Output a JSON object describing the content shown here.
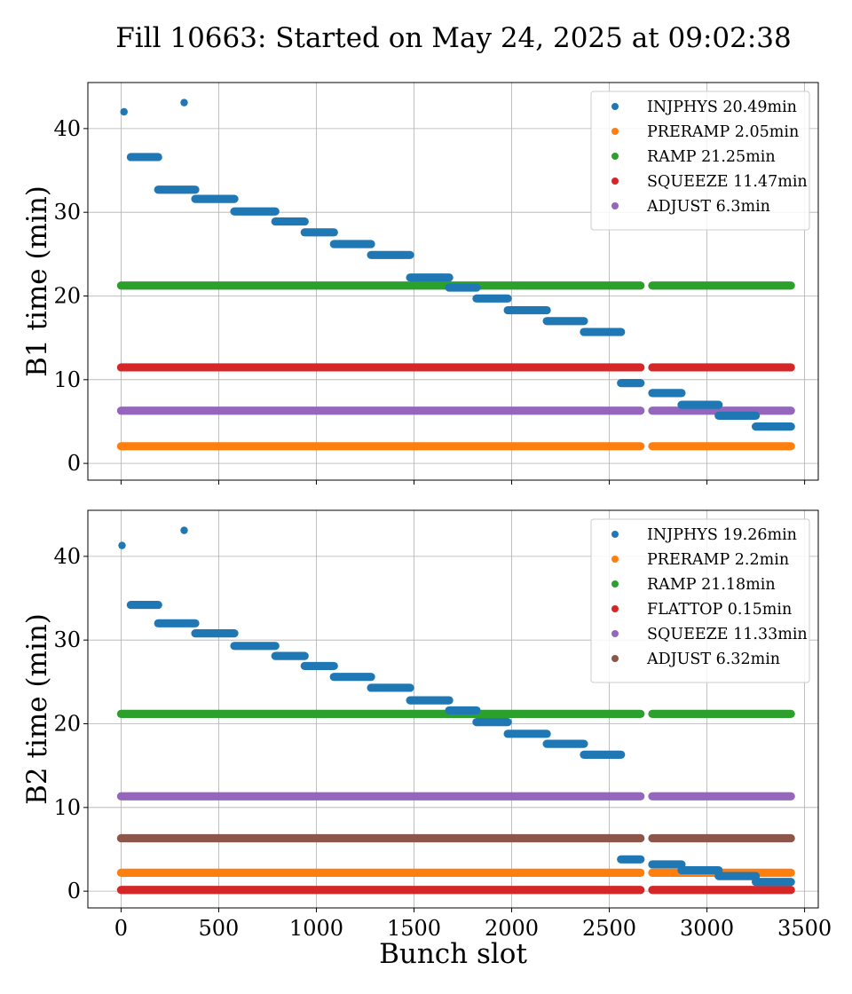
{
  "title": "Fill 10663: Started on May 24, 2025 at 09:02:38",
  "colors": {
    "tab_blue": "#1f77b4",
    "tab_orange": "#ff7f0e",
    "tab_green": "#2ca02c",
    "tab_red": "#d62728",
    "tab_purple": "#9467bd",
    "tab_brown": "#8c564b"
  },
  "chart_data": [
    {
      "type": "scatter",
      "xlabel": "",
      "ylabel": "B1 time (min)",
      "xlim": [
        -170,
        3570
      ],
      "ylim": [
        -2,
        45.5
      ],
      "xticks": [
        0,
        500,
        1000,
        1500,
        2000,
        2500,
        3000,
        3500
      ],
      "xtick_labels_visible": false,
      "yticks": [
        0,
        10,
        20,
        30,
        40
      ],
      "grid": true,
      "legend_position": "top-right",
      "gaps": [
        [
          2660,
          2720
        ]
      ],
      "series": [
        {
          "name": "INJPHYS 20.49min",
          "color": "#1f77b4",
          "flat_slot_range": [
            0,
            0
          ],
          "points": [
            [
              15,
              42.0
            ],
            [
              323,
              43.1
            ]
          ],
          "segments": [
            [
              50,
              190,
              36.6
            ],
            [
              190,
              380,
              32.7
            ],
            [
              380,
              580,
              31.6
            ],
            [
              580,
              790,
              30.1
            ],
            [
              790,
              940,
              28.9
            ],
            [
              940,
              1090,
              27.6
            ],
            [
              1090,
              1280,
              26.2
            ],
            [
              1280,
              1480,
              24.9
            ],
            [
              1480,
              1680,
              22.2
            ],
            [
              1680,
              1820,
              21.0
            ],
            [
              1820,
              1980,
              19.7
            ],
            [
              1980,
              2180,
              18.3
            ],
            [
              2180,
              2370,
              17.0
            ],
            [
              2370,
              2560,
              15.7
            ],
            [
              2560,
              2660,
              9.6
            ],
            [
              2720,
              2870,
              8.4
            ],
            [
              2870,
              3060,
              7.0
            ],
            [
              3060,
              3250,
              5.7
            ],
            [
              3250,
              3430,
              4.4
            ]
          ]
        },
        {
          "name": "PRERAMP 2.05min",
          "color": "#ff7f0e",
          "value": 2.05,
          "flat_slot_range": [
            0,
            3430
          ],
          "points": [],
          "segments": []
        },
        {
          "name": "RAMP 21.25min",
          "color": "#2ca02c",
          "value": 21.25,
          "flat_slot_range": [
            0,
            3430
          ],
          "points": [],
          "segments": []
        },
        {
          "name": "SQUEEZE 11.47min",
          "color": "#d62728",
          "value": 11.47,
          "flat_slot_range": [
            0,
            3430
          ],
          "points": [],
          "segments": []
        },
        {
          "name": "ADJUST 6.3min",
          "color": "#9467bd",
          "value": 6.3,
          "flat_slot_range": [
            0,
            3430
          ],
          "points": [],
          "segments": []
        }
      ],
      "draw_order": [
        1,
        2,
        3,
        4,
        0
      ]
    },
    {
      "type": "scatter",
      "xlabel": "Bunch slot",
      "ylabel": "B2 time (min)",
      "xlim": [
        -170,
        3570
      ],
      "ylim": [
        -2,
        45.5
      ],
      "xticks": [
        0,
        500,
        1000,
        1500,
        2000,
        2500,
        3000,
        3500
      ],
      "xtick_labels_visible": true,
      "yticks": [
        0,
        10,
        20,
        30,
        40
      ],
      "grid": true,
      "legend_position": "top-right",
      "gaps": [
        [
          2660,
          2720
        ]
      ],
      "series": [
        {
          "name": "INJPHYS 19.26min",
          "color": "#1f77b4",
          "flat_slot_range": [
            0,
            0
          ],
          "points": [
            [
              5,
              41.3
            ],
            [
              323,
              43.1
            ]
          ],
          "segments": [
            [
              50,
              190,
              34.2
            ],
            [
              190,
              380,
              32.0
            ],
            [
              380,
              580,
              30.8
            ],
            [
              580,
              790,
              29.3
            ],
            [
              790,
              940,
              28.1
            ],
            [
              940,
              1090,
              26.9
            ],
            [
              1090,
              1280,
              25.6
            ],
            [
              1280,
              1480,
              24.3
            ],
            [
              1480,
              1680,
              22.8
            ],
            [
              1680,
              1820,
              21.6
            ],
            [
              1820,
              1980,
              20.2
            ],
            [
              1980,
              2180,
              18.8
            ],
            [
              2180,
              2370,
              17.6
            ],
            [
              2370,
              2560,
              16.3
            ],
            [
              2560,
              2660,
              3.8
            ],
            [
              2720,
              2870,
              3.2
            ],
            [
              2870,
              3060,
              2.5
            ],
            [
              3060,
              3250,
              1.8
            ],
            [
              3250,
              3430,
              1.1
            ]
          ]
        },
        {
          "name": "PRERAMP 2.2min",
          "color": "#ff7f0e",
          "value": 2.2,
          "flat_slot_range": [
            0,
            3430
          ],
          "points": [],
          "segments": []
        },
        {
          "name": "RAMP 21.18min",
          "color": "#2ca02c",
          "value": 21.18,
          "flat_slot_range": [
            0,
            3430
          ],
          "points": [],
          "segments": []
        },
        {
          "name": "FLATTOP 0.15min",
          "color": "#d62728",
          "value": 0.15,
          "flat_slot_range": [
            0,
            3430
          ],
          "points": [],
          "segments": []
        },
        {
          "name": "SQUEEZE 11.33min",
          "color": "#9467bd",
          "value": 11.33,
          "flat_slot_range": [
            0,
            3430
          ],
          "points": [],
          "segments": []
        },
        {
          "name": "ADJUST 6.32min",
          "color": "#8c564b",
          "value": 6.32,
          "flat_slot_range": [
            0,
            3430
          ],
          "points": [],
          "segments": []
        }
      ],
      "draw_order": [
        1,
        2,
        3,
        4,
        5,
        0
      ]
    }
  ]
}
